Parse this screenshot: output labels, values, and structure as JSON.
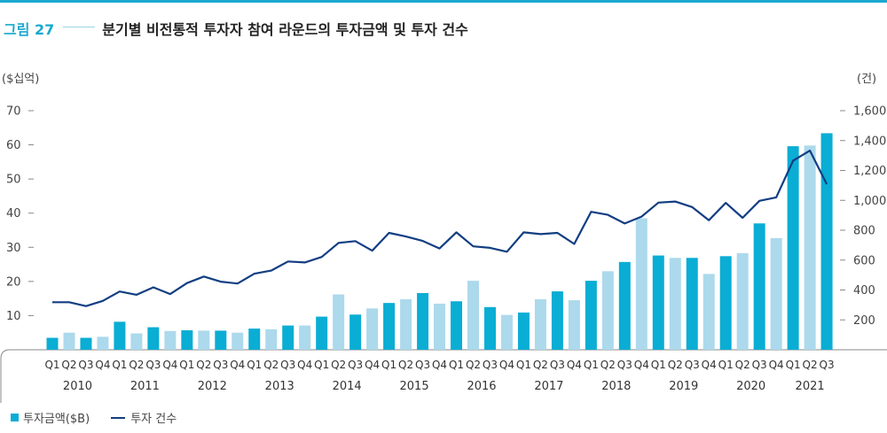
{
  "header": {
    "figure_label": "그림 27",
    "title": "분기별 비전통적 투자자 참여 라운드의 투자금액 및 투자 건수"
  },
  "colors": {
    "accent": "#1aa9cf",
    "bar_dark": "#0aadd4",
    "bar_light": "#acd9ec",
    "line": "#123e82",
    "axis": "#888888"
  },
  "chart_data": {
    "type": "bar",
    "left_unit": "($십억)",
    "right_unit": "(건)",
    "left_ticks": [
      "10",
      "20",
      "30",
      "40",
      "50",
      "60",
      "70"
    ],
    "right_ticks": [
      "200",
      "400",
      "600",
      "800",
      "1,000",
      "1,200",
      "1,400",
      "1,600"
    ],
    "ylim_left": [
      0,
      70
    ],
    "ylim_right": [
      0,
      1600
    ],
    "quarter_labels": [
      "Q1",
      "Q2",
      "Q3",
      "Q4",
      "Q1",
      "Q2",
      "Q3",
      "Q4",
      "Q1",
      "Q2",
      "Q3",
      "Q4",
      "Q1",
      "Q2",
      "Q3",
      "Q4",
      "Q1",
      "Q2",
      "Q3",
      "Q4",
      "Q1",
      "Q2",
      "Q3",
      "Q4",
      "Q1",
      "Q2",
      "Q3",
      "Q4",
      "Q1",
      "Q2",
      "Q3",
      "Q4",
      "Q1",
      "Q2",
      "Q3",
      "Q4",
      "Q1",
      "Q2",
      "Q3",
      "Q4",
      "Q1",
      "Q2",
      "Q3",
      "Q4",
      "Q1",
      "Q2",
      "Q3"
    ],
    "years": [
      "2010",
      "2011",
      "2012",
      "2013",
      "2014",
      "2015",
      "2016",
      "2017",
      "2018",
      "2019",
      "2020",
      "2021"
    ],
    "series": [
      {
        "name": "투자금액($B)",
        "type": "bar",
        "values": [
          3.5,
          5.0,
          3.5,
          3.8,
          8.2,
          4.8,
          6.6,
          5.5,
          5.7,
          5.6,
          5.6,
          5.0,
          6.2,
          6.0,
          7.1,
          7.1,
          9.7,
          16.2,
          10.3,
          12.1,
          13.7,
          14.8,
          16.6,
          13.5,
          14.2,
          20.2,
          12.5,
          10.2,
          10.9,
          14.8,
          17.1,
          14.5,
          20.2,
          23.0,
          25.7,
          38.5,
          27.6,
          26.9,
          26.9,
          22.2,
          27.4,
          28.3,
          37.0,
          32.7,
          59.6,
          59.8,
          63.4
        ]
      },
      {
        "name": "투자 건수",
        "type": "line",
        "values": [
          318,
          318,
          292,
          327,
          390,
          368,
          418,
          373,
          446,
          490,
          456,
          443,
          509,
          530,
          591,
          584,
          621,
          715,
          727,
          663,
          782,
          758,
          728,
          678,
          786,
          692,
          682,
          656,
          786,
          774,
          782,
          708,
          923,
          903,
          845,
          891,
          985,
          992,
          955,
          867,
          983,
          883,
          997,
          1020,
          1265,
          1333,
          1108
        ]
      }
    ]
  },
  "legend": {
    "bar_label": "투자금액($B)",
    "line_label": "투자 건수"
  }
}
